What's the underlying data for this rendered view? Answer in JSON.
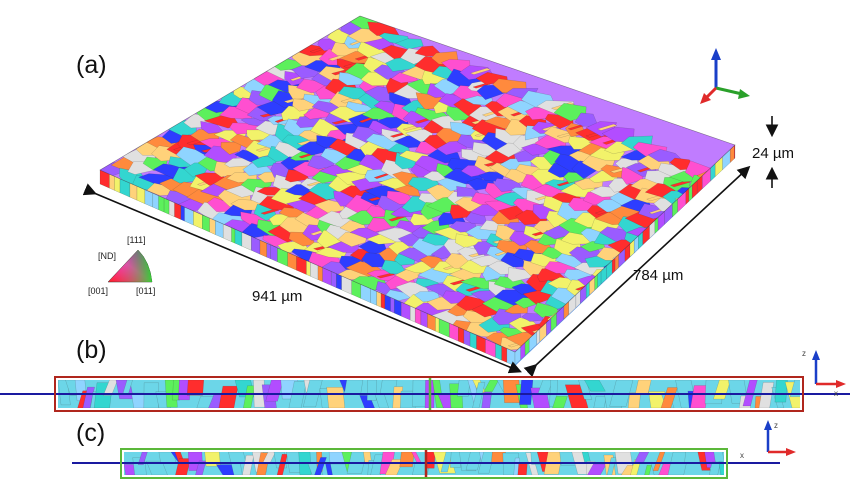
{
  "panels": {
    "a": "(a)",
    "b": "(b)",
    "c": "(c)"
  },
  "dimensions": {
    "length": "941 µm",
    "width": "784 µm",
    "thickness": "24 µm"
  },
  "ipf_key": {
    "direction": "[ND]",
    "top": "[111]",
    "left": "[001]",
    "right": "[011]"
  },
  "triad_b": {
    "vertical": "z",
    "horizontal": "x"
  },
  "triad_c": {
    "vertical": "z",
    "horizontal": "x"
  },
  "colors": {
    "grain_palette": [
      "#ff2d2d",
      "#2d3dff",
      "#5cf05c",
      "#ff4fd0",
      "#b24dff",
      "#8fd4ff",
      "#ffd27a",
      "#ff8a3d",
      "#e0e0e0",
      "#9a5cff",
      "#33d6d0",
      "#f2f26a"
    ],
    "cut_b_frame": "#b0261d",
    "cut_c_frame": "#5bb83a",
    "section_line": "#1a1aa0",
    "triad_x": "#e02a2a",
    "triad_y": "#2aa02a",
    "triad_z": "#1a3fc8"
  }
}
